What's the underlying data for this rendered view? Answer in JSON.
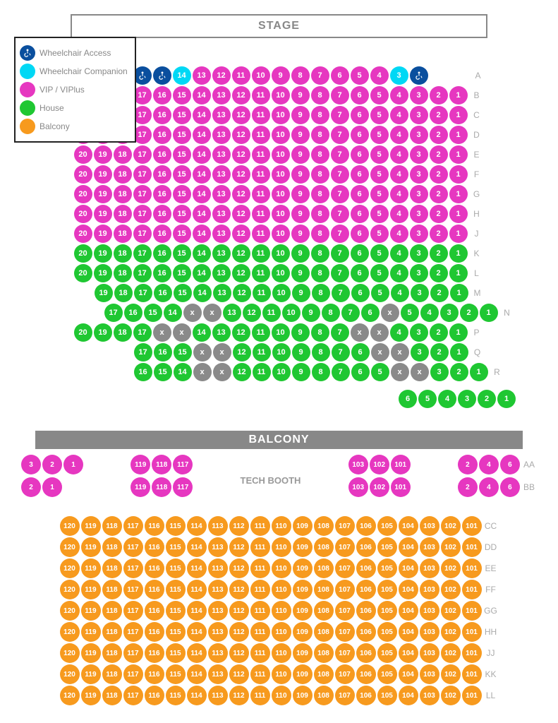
{
  "colors": {
    "wheelchair_access": "#0a4f9e",
    "wheelchair_companion": "#00d8f5",
    "vip": "#e637c0",
    "green": "#1fc732",
    "balcony": "#f79a1e",
    "blocked": "#8a8a8a",
    "stage_border": "#888888",
    "label_text": "#aaaaaa"
  },
  "legend": [
    {
      "color": "wheelchair_access",
      "label": "Wheelchair Access",
      "icon": "wheelchair"
    },
    {
      "color": "wheelchair_companion",
      "label": "Wheelchair Companion"
    },
    {
      "color": "vip",
      "label": "VIP / VIPlus"
    },
    {
      "color": "green",
      "label": "House"
    },
    {
      "color": "balcony",
      "label": "Balcony"
    }
  ],
  "stage_label": "STAGE",
  "balcony_label": "BALCONY",
  "tech_booth_label": "TECH BOOTH",
  "main_rows": [
    {
      "label": "A",
      "indent": 3,
      "seats": [
        {
          "n": "",
          "c": "wheelchair_access",
          "icon": "wheelchair"
        },
        {
          "n": "",
          "c": "wheelchair_access",
          "icon": "wheelchair"
        },
        {
          "n": 14,
          "c": "wheelchair_companion"
        },
        {
          "n": 13,
          "c": "vip"
        },
        {
          "n": 12,
          "c": "vip"
        },
        {
          "n": 11,
          "c": "vip"
        },
        {
          "n": 10,
          "c": "vip"
        },
        {
          "n": 9,
          "c": "vip"
        },
        {
          "n": 8,
          "c": "vip"
        },
        {
          "n": 7,
          "c": "vip"
        },
        {
          "n": 6,
          "c": "vip"
        },
        {
          "n": 5,
          "c": "vip"
        },
        {
          "n": 4,
          "c": "vip"
        },
        {
          "n": 3,
          "c": "wheelchair_companion"
        },
        {
          "n": "",
          "c": "wheelchair_access",
          "icon": "wheelchair"
        }
      ]
    },
    {
      "label": "B",
      "seats": "20-1",
      "color": "vip"
    },
    {
      "label": "C",
      "seats": "20-1",
      "color": "vip"
    },
    {
      "label": "D",
      "seats": "20-1",
      "color": "vip"
    },
    {
      "label": "E",
      "seats": "20-1",
      "color": "vip"
    },
    {
      "label": "F",
      "seats": "20-1",
      "color": "vip"
    },
    {
      "label": "G",
      "seats": "20-1",
      "color": "vip"
    },
    {
      "label": "H",
      "seats": "20-1",
      "color": "vip"
    },
    {
      "label": "J",
      "seats": "20-1",
      "color": "vip"
    },
    {
      "label": "K",
      "seats": "20-1",
      "color": "green"
    },
    {
      "label": "L",
      "seats": "20-1",
      "color": "green"
    },
    {
      "label": "M",
      "indent": 1,
      "seats": "19-1",
      "color": "green"
    },
    {
      "label": "N",
      "indent": 3,
      "seats": [
        {
          "n": 17,
          "c": "green"
        },
        {
          "n": 16,
          "c": "green"
        },
        {
          "n": 15,
          "c": "green"
        },
        {
          "n": 14,
          "c": "green"
        },
        {
          "n": "x",
          "c": "blocked"
        },
        {
          "n": "x",
          "c": "blocked"
        },
        {
          "n": 13,
          "c": "green"
        },
        {
          "n": 12,
          "c": "green"
        },
        {
          "n": 11,
          "c": "green"
        },
        {
          "n": 10,
          "c": "green"
        },
        {
          "n": 9,
          "c": "green"
        },
        {
          "n": 8,
          "c": "green"
        },
        {
          "n": 7,
          "c": "green"
        },
        {
          "n": 6,
          "c": "green"
        },
        {
          "n": "x",
          "c": "blocked"
        },
        {
          "n": 5,
          "c": "green"
        },
        {
          "n": 4,
          "c": "green"
        },
        {
          "n": 3,
          "c": "green"
        },
        {
          "n": 2,
          "c": "green"
        },
        {
          "n": 1,
          "c": "green"
        }
      ]
    },
    {
      "label": "P",
      "seats": [
        {
          "n": 20,
          "c": "green"
        },
        {
          "n": 19,
          "c": "green"
        },
        {
          "n": 18,
          "c": "green"
        },
        {
          "n": 17,
          "c": "green"
        },
        {
          "n": "x",
          "c": "blocked"
        },
        {
          "n": "x",
          "c": "blocked"
        },
        {
          "n": 14,
          "c": "green"
        },
        {
          "n": 13,
          "c": "green"
        },
        {
          "n": 12,
          "c": "green"
        },
        {
          "n": 11,
          "c": "green"
        },
        {
          "n": 10,
          "c": "green"
        },
        {
          "n": 9,
          "c": "green"
        },
        {
          "n": 8,
          "c": "green"
        },
        {
          "n": 7,
          "c": "green"
        },
        {
          "n": "x",
          "c": "blocked"
        },
        {
          "n": "x",
          "c": "blocked"
        },
        {
          "n": 4,
          "c": "green"
        },
        {
          "n": 3,
          "c": "green"
        },
        {
          "n": 2,
          "c": "green"
        },
        {
          "n": 1,
          "c": "green"
        }
      ]
    },
    {
      "label": "Q",
      "indent": 3,
      "seats": [
        {
          "n": 17,
          "c": "green"
        },
        {
          "n": 16,
          "c": "green"
        },
        {
          "n": 15,
          "c": "green"
        },
        {
          "n": "x",
          "c": "blocked"
        },
        {
          "n": "x",
          "c": "blocked"
        },
        {
          "n": 12,
          "c": "green"
        },
        {
          "n": 11,
          "c": "green"
        },
        {
          "n": 10,
          "c": "green"
        },
        {
          "n": 9,
          "c": "green"
        },
        {
          "n": 8,
          "c": "green"
        },
        {
          "n": 7,
          "c": "green"
        },
        {
          "n": 6,
          "c": "green"
        },
        {
          "n": "x",
          "c": "blocked"
        },
        {
          "n": "x",
          "c": "blocked"
        },
        {
          "n": 3,
          "c": "green"
        },
        {
          "n": 2,
          "c": "green"
        },
        {
          "n": 1,
          "c": "green"
        }
      ]
    },
    {
      "label": "R",
      "indent": 4,
      "seats": [
        {
          "n": 16,
          "c": "green"
        },
        {
          "n": 15,
          "c": "green"
        },
        {
          "n": 14,
          "c": "green"
        },
        {
          "n": "x",
          "c": "blocked"
        },
        {
          "n": "x",
          "c": "blocked"
        },
        {
          "n": 12,
          "c": "green"
        },
        {
          "n": 11,
          "c": "green"
        },
        {
          "n": 10,
          "c": "green"
        },
        {
          "n": 9,
          "c": "green"
        },
        {
          "n": 8,
          "c": "green"
        },
        {
          "n": 7,
          "c": "green"
        },
        {
          "n": 6,
          "c": "green"
        },
        {
          "n": 5,
          "c": "green"
        },
        {
          "n": "x",
          "c": "blocked"
        },
        {
          "n": "x",
          "c": "blocked"
        },
        {
          "n": 3,
          "c": "green"
        },
        {
          "n": 2,
          "c": "green"
        },
        {
          "n": 1,
          "c": "green"
        }
      ]
    }
  ],
  "extra_row": {
    "label": "",
    "seats": [
      6,
      5,
      4,
      3,
      2,
      1
    ],
    "color": "green"
  },
  "balcony_top_left_side": [
    {
      "label": "AA",
      "seats": [
        3,
        2,
        1
      ]
    },
    {
      "label": "BB",
      "seats": [
        2,
        1
      ]
    }
  ],
  "balcony_top_left_mid": [
    {
      "seats": [
        119,
        118,
        117
      ]
    },
    {
      "seats": [
        119,
        118,
        117
      ]
    }
  ],
  "balcony_top_right_mid": [
    {
      "seats": [
        103,
        102,
        101
      ]
    },
    {
      "seats": [
        103,
        102,
        101
      ]
    }
  ],
  "balcony_top_right_side": [
    {
      "label": "AA",
      "seats": [
        2,
        4,
        6
      ]
    },
    {
      "label": "BB",
      "seats": [
        2,
        4,
        6
      ]
    }
  ],
  "balcony_main": [
    {
      "label": "CC",
      "seats": "120-101"
    },
    {
      "label": "DD",
      "seats": "120-101"
    },
    {
      "label": "EE",
      "seats": "120-101"
    },
    {
      "label": "FF",
      "seats": "120-101"
    },
    {
      "label": "GG",
      "seats": "120-101"
    },
    {
      "label": "HH",
      "seats": "120-101"
    },
    {
      "label": "JJ",
      "seats": "120-101"
    },
    {
      "label": "KK",
      "seats": "120-101"
    },
    {
      "label": "LL",
      "seats": "120-101"
    }
  ]
}
